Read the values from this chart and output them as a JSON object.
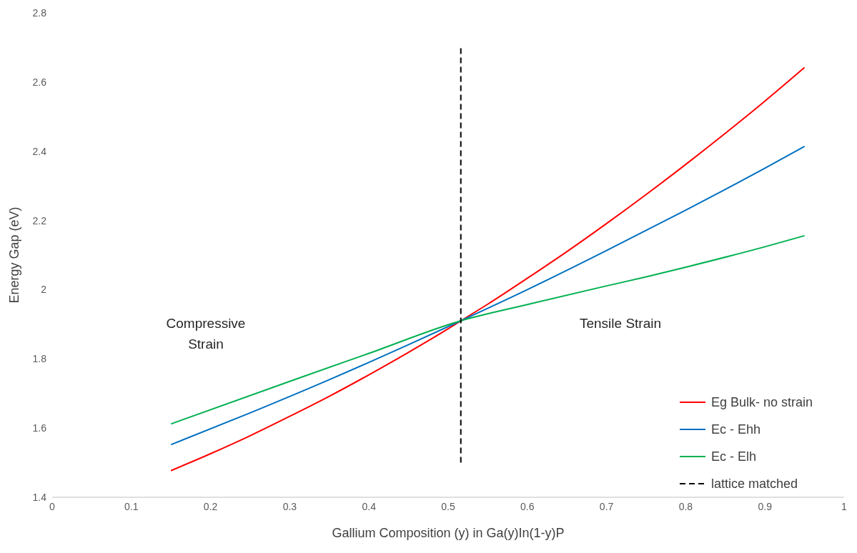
{
  "chart_data": {
    "type": "line",
    "xlabel": "Gallium Composition (y) in Ga(y)In(1-y)P",
    "ylabel": "Energy Gap (eV)",
    "xlim": [
      0,
      1
    ],
    "xticks": [
      0,
      0.1,
      0.2,
      0.3,
      0.4,
      0.5,
      0.6,
      0.7,
      0.8,
      0.9,
      1
    ],
    "ylim": [
      1.4,
      2.8
    ],
    "yticks": [
      1.4,
      1.6,
      1.8,
      2,
      2.2,
      2.4,
      2.6,
      2.8
    ],
    "grid": false,
    "legend": "bottom right",
    "marker": "none",
    "annotations": [
      "Compressive Strain",
      "Tensile Strain"
    ],
    "series": [
      {
        "name": "Eg Bulk- no strain",
        "color": "#ff0000",
        "x": [
          0.15,
          0.2,
          0.25,
          0.3,
          0.35,
          0.4,
          0.45,
          0.5,
          0.516,
          0.55,
          0.6,
          0.65,
          0.7,
          0.75,
          0.8,
          0.85,
          0.9,
          0.95
        ],
        "values": [
          1.477,
          1.526,
          1.578,
          1.634,
          1.692,
          1.754,
          1.819,
          1.887,
          1.91,
          1.958,
          2.033,
          2.11,
          2.191,
          2.275,
          2.362,
          2.452,
          2.545,
          2.642
        ]
      },
      {
        "name": "Ec - Ehh",
        "color": "#0070c0",
        "x": [
          0.15,
          0.25,
          0.35,
          0.45,
          0.516,
          0.6,
          0.7,
          0.8,
          0.9,
          0.95
        ],
        "values": [
          1.552,
          1.644,
          1.74,
          1.841,
          1.91,
          2.0,
          2.113,
          2.23,
          2.351,
          2.414
        ]
      },
      {
        "name": "Ec - Elh",
        "color": "#00b050",
        "x": [
          0.15,
          0.3,
          0.4,
          0.516,
          0.6,
          0.7,
          0.75,
          0.8,
          0.9,
          0.95
        ],
        "values": [
          1.612,
          1.735,
          1.816,
          1.91,
          1.957,
          2.011,
          2.037,
          2.065,
          2.124,
          2.156
        ]
      },
      {
        "name": "lattice matched",
        "color": "#000000",
        "line_style": "dashed",
        "x": [
          0.516,
          0.516
        ],
        "values": [
          1.5,
          2.7
        ]
      }
    ]
  }
}
